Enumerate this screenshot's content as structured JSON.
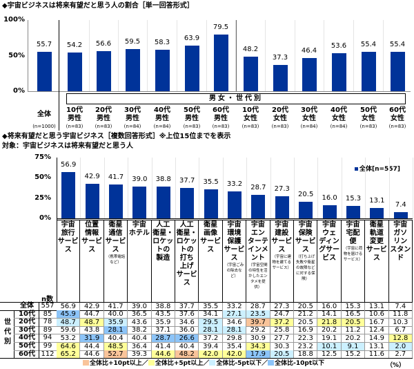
{
  "chart_data": [
    {
      "type": "bar",
      "title": "◆宇宙ビジネスは将来有望だと思う人の割合［単一回答形式］",
      "yticks": [
        "100%",
        "50%",
        "0%"
      ],
      "ylim": [
        0,
        100
      ],
      "group_label": "男女・世代別",
      "categories": [
        {
          "label": "全体",
          "n": "(n=1000)"
        },
        {
          "label": "10代\n男性",
          "n": "(n=83)"
        },
        {
          "label": "20代\n男性",
          "n": "(n=83)"
        },
        {
          "label": "30代\n男性",
          "n": "(n=84)"
        },
        {
          "label": "40代\n男性",
          "n": "(n=84)"
        },
        {
          "label": "50代\n男性",
          "n": "(n=83)"
        },
        {
          "label": "60代\n男性",
          "n": "(n=83)"
        },
        {
          "label": "10代\n女性",
          "n": "(n=83)"
        },
        {
          "label": "20代\n女性",
          "n": "(n=83)"
        },
        {
          "label": "30代\n女性",
          "n": "(n=84)"
        },
        {
          "label": "40代\n女性",
          "n": "(n=84)"
        },
        {
          "label": "50代\n女性",
          "n": "(n=83)"
        },
        {
          "label": "60代\n女性",
          "n": "(n=83)"
        }
      ],
      "values": [
        "55.7",
        "54.2",
        "56.6",
        "59.5",
        "58.3",
        "63.9",
        "79.5",
        "48.2",
        "37.3",
        "46.4",
        "53.6",
        "55.4",
        "55.4"
      ],
      "bar_color": "#003399"
    },
    {
      "type": "bar",
      "title": "◆将来有望だと思う宇宙ビジネス［複数回答形式］※上位15位までを表示",
      "subtitle": "対象：宇宙ビジネスは将来有望だと思う人",
      "yticks": [
        "75%",
        "50%",
        "25%",
        "0%"
      ],
      "ylim": [
        0,
        75
      ],
      "legend": "全体[n=557]",
      "legend_position": "top-right",
      "categories": [
        {
          "label": "宇宙\n旅行\nサービ\nス",
          "note": ""
        },
        {
          "label": "位置\n情報\nサービ\nス",
          "note": ""
        },
        {
          "label": "衛星\n通信\nサービ\nス",
          "note": "（携帯電話など）"
        },
        {
          "label": "宇宙\nホテル",
          "note": ""
        },
        {
          "label": "人工\n衛星・\nロケッ\nトの\n製造",
          "note": ""
        },
        {
          "label": "人工\n衛星・\nロケッ\nトの\n打ち\n上げ\nサービ\nス",
          "note": ""
        },
        {
          "label": "衛星\n画像\nサービ\nス",
          "note": ""
        },
        {
          "label": "宇宙\n環境\n保護\nサービ\nス",
          "note": "（宇宙ごみの除去など）"
        },
        {
          "label": "宇宙\nエン\nターテ\nインメ\nント",
          "note": "（宇宙空間の特性を活かしたエンタメを提供）"
        },
        {
          "label": "宇宙\n建設\nサービ\nス",
          "note": "（宇宙に建物を建てるサービス）"
        },
        {
          "label": "宇宙\n保険\nサービ\nス",
          "note": "（打ち上げ失敗や衛星の故障などに対する保険）"
        },
        {
          "label": "宇宙\nウェ\nディン\nグサー\nビス",
          "note": ""
        },
        {
          "label": "宇宙\n宅配\n便",
          "note": "（宇宙に荷物を届けるサービス）"
        },
        {
          "label": "衛星\n軌道\n変更\nサービ\nス",
          "note": ""
        },
        {
          "label": "宇宙\nガソ\nリン\nスタン\nド",
          "note": ""
        }
      ],
      "values": [
        "56.9",
        "42.9",
        "41.7",
        "39.0",
        "38.8",
        "37.7",
        "35.5",
        "33.2",
        "28.7",
        "27.3",
        "20.5",
        "16.0",
        "15.3",
        "13.1",
        "7.4"
      ],
      "bar_color": "#003399"
    }
  ],
  "table": {
    "n_header": "n数",
    "group_label": "世代別",
    "total": {
      "label": "全体",
      "n": "557",
      "values": [
        "56.9",
        "42.9",
        "41.7",
        "39.0",
        "38.8",
        "37.7",
        "35.5",
        "33.2",
        "28.7",
        "27.3",
        "20.5",
        "16.0",
        "15.3",
        "13.1",
        "7.4"
      ]
    },
    "rows": [
      {
        "label": "10代",
        "n": "85",
        "values": [
          "45.9",
          "44.7",
          "40.0",
          "36.5",
          "43.5",
          "37.6",
          "34.1",
          "27.1",
          "23.5",
          "24.7",
          "21.2",
          "14.1",
          "16.5",
          "10.6",
          "11.8"
        ],
        "marks": [
          "b",
          "",
          "",
          "",
          "",
          "",
          "",
          "c",
          "c",
          "",
          "",
          "",
          "",
          "",
          ""
        ]
      },
      {
        "label": "20代",
        "n": "78",
        "values": [
          "48.7",
          "48.7",
          "35.9",
          "43.6",
          "35.9",
          "34.6",
          "29.5",
          "34.6",
          "39.7",
          "37.2",
          "20.5",
          "21.8",
          "20.5",
          "16.7",
          "10.3"
        ],
        "marks": [
          "c",
          "y",
          "c",
          "",
          "",
          "",
          "c",
          "",
          "o",
          "y",
          "",
          "y",
          "y",
          "",
          ""
        ]
      },
      {
        "label": "30代",
        "n": "89",
        "values": [
          "59.6",
          "43.8",
          "28.1",
          "38.2",
          "37.1",
          "36.0",
          "28.1",
          "28.1",
          "29.2",
          "25.8",
          "16.9",
          "20.2",
          "11.2",
          "12.4",
          "6.7"
        ],
        "marks": [
          "",
          "",
          "b",
          "",
          "",
          "",
          "c",
          "c",
          "",
          "",
          "",
          "",
          "",
          "",
          ""
        ]
      },
      {
        "label": "40代",
        "n": "94",
        "values": [
          "53.2",
          "31.9",
          "40.4",
          "40.4",
          "28.7",
          "26.6",
          "37.2",
          "29.8",
          "30.9",
          "27.7",
          "22.3",
          "19.1",
          "20.2",
          "14.9",
          "12.8"
        ],
        "marks": [
          "",
          "b",
          "",
          "",
          "b",
          "b",
          "",
          "",
          "",
          "",
          "",
          "",
          "",
          "",
          "y"
        ]
      },
      {
        "label": "50代",
        "n": "99",
        "values": [
          "64.6",
          "44.4",
          "48.5",
          "36.4",
          "41.4",
          "40.4",
          "39.4",
          "35.4",
          "34.3",
          "30.3",
          "23.2",
          "10.1",
          "9.1",
          "13.1",
          "2.0"
        ],
        "marks": [
          "y",
          "",
          "y",
          "",
          "",
          "",
          "",
          "",
          "y",
          "",
          "",
          "c",
          "c",
          "",
          "c"
        ]
      },
      {
        "label": "60代",
        "n": "112",
        "values": [
          "65.2",
          "44.6",
          "52.7",
          "39.3",
          "44.6",
          "48.2",
          "42.0",
          "42.0",
          "17.9",
          "20.5",
          "18.8",
          "12.5",
          "15.2",
          "11.6",
          "2.7"
        ],
        "marks": [
          "y",
          "",
          "o",
          "",
          "y",
          "o",
          "y",
          "y",
          "b",
          "c",
          "",
          "",
          "",
          "",
          ""
        ]
      }
    ],
    "legend": [
      {
        "key": "o",
        "label": "全体比+10pt以上／",
        "color": "#f9c49a"
      },
      {
        "key": "y",
        "label": "全体比+5pt以上／",
        "color": "#ffff99"
      },
      {
        "key": "c",
        "label": "全体比-5pt以下／",
        "color": "#ccf0ff"
      },
      {
        "key": "b",
        "label": "全体比-10pt以下",
        "color": "#8cc4f8"
      }
    ],
    "unit": "（%）"
  }
}
